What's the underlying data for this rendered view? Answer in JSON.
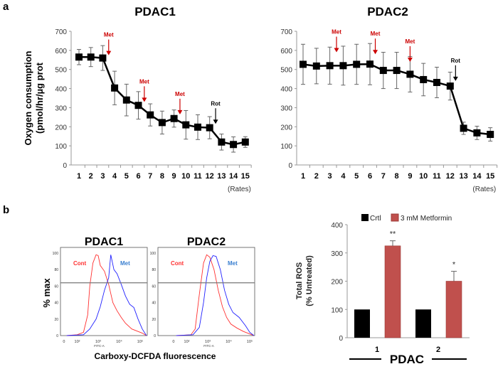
{
  "panel_labels": [
    "a",
    "b"
  ],
  "colors": {
    "line": "#000000",
    "met_arrow": "#cc0000",
    "rot_arrow": "#000000",
    "cont_hist": "#ff3030",
    "met_hist": "#2020ff",
    "met_label": "#3a7fd0",
    "crtl_bar": "#000000",
    "metformin_bar": "#c0504d"
  },
  "chart_data": [
    {
      "type": "line",
      "title": "PDAC1",
      "ylabel": "Oxygen consumption (pmol/hr/µg prot",
      "xlabel": "(Rates)",
      "ylim": [
        0,
        700
      ],
      "yticks": [
        0,
        100,
        200,
        300,
        400,
        500,
        600,
        700
      ],
      "x": [
        1,
        2,
        3,
        4,
        5,
        6,
        7,
        8,
        9,
        10,
        11,
        12,
        13,
        14,
        15
      ],
      "values": [
        565,
        565,
        560,
        403,
        340,
        312,
        262,
        222,
        243,
        210,
        198,
        195,
        120,
        107,
        120
      ],
      "errors": [
        40,
        50,
        65,
        88,
        83,
        72,
        58,
        60,
        45,
        75,
        65,
        58,
        42,
        40,
        28
      ],
      "annotations": [
        {
          "text": "Met",
          "x": 3.5,
          "y": 575,
          "color": "#cc0000"
        },
        {
          "text": "Met",
          "x": 6.5,
          "y": 330,
          "color": "#cc0000"
        },
        {
          "text": "Met",
          "x": 9.5,
          "y": 265,
          "color": "#cc0000"
        },
        {
          "text": "Rot",
          "x": 12.5,
          "y": 215,
          "color": "#000000"
        }
      ]
    },
    {
      "type": "line",
      "title": "PDAC2",
      "xlabel": "(Rates)",
      "ylim": [
        0,
        700
      ],
      "yticks": [
        0,
        100,
        200,
        300,
        400,
        500,
        600,
        700
      ],
      "x": [
        1,
        2,
        3,
        4,
        5,
        6,
        7,
        8,
        9,
        10,
        11,
        12,
        13,
        14,
        15
      ],
      "values": [
        527,
        518,
        520,
        520,
        527,
        528,
        495,
        495,
        475,
        447,
        432,
        413,
        192,
        168,
        160
      ],
      "errors": [
        105,
        93,
        97,
        102,
        105,
        108,
        95,
        95,
        93,
        85,
        80,
        73,
        32,
        35,
        35
      ],
      "annotations": [
        {
          "text": "Met",
          "x": 3.5,
          "y": 590,
          "color": "#cc0000"
        },
        {
          "text": "Met",
          "x": 6.4,
          "y": 580,
          "color": "#cc0000"
        },
        {
          "text": "Met",
          "x": 9.0,
          "y": 540,
          "color": "#cc0000"
        },
        {
          "text": "Rot",
          "x": 12.4,
          "y": 440,
          "color": "#000000"
        }
      ]
    },
    {
      "type": "line",
      "title": "PDAC1",
      "ylabel": "% max",
      "xlabel": "FITC-A",
      "xscale": "log",
      "xticks": [
        "0",
        "10²",
        "10³",
        "10⁴",
        "10⁵"
      ],
      "yticks": [
        0,
        20,
        40,
        60,
        80,
        100
      ],
      "gate_y": 64,
      "series": [
        {
          "name": "Cont",
          "color": "#ff3030",
          "x": [
            1.5,
            2.0,
            2.3,
            2.5,
            2.6,
            2.75,
            2.9,
            3.0,
            3.1,
            3.3,
            3.5,
            3.7,
            3.9,
            4.1,
            4.3,
            4.6,
            4.9,
            5.1,
            5.3
          ],
          "y": [
            0,
            1,
            4,
            25,
            60,
            88,
            98,
            97,
            85,
            78,
            62,
            40,
            30,
            22,
            15,
            8,
            5,
            3,
            0
          ]
        },
        {
          "name": "Met",
          "color": "#2020ff",
          "x": [
            1.5,
            2.3,
            2.6,
            2.9,
            3.1,
            3.3,
            3.5,
            3.6,
            3.75,
            3.9,
            4.1,
            4.3,
            4.5,
            4.7,
            4.9,
            5.1,
            5.3
          ],
          "y": [
            0,
            1,
            8,
            20,
            35,
            55,
            70,
            98,
            80,
            75,
            62,
            48,
            38,
            34,
            20,
            8,
            0
          ]
        }
      ]
    },
    {
      "type": "line",
      "title": "PDAC2",
      "xlabel": "FITC-A",
      "xscale": "log",
      "xticks": [
        "0",
        "10²",
        "10³",
        "10⁴",
        "10⁵"
      ],
      "yticks": [
        0,
        20,
        40,
        60,
        80,
        100
      ],
      "gate_y": 64,
      "series": [
        {
          "name": "Cont",
          "color": "#ff3030",
          "x": [
            1.5,
            2.2,
            2.4,
            2.6,
            2.8,
            2.95,
            3.1,
            3.3,
            3.5,
            3.7,
            3.9,
            4.1,
            4.4,
            4.7,
            5.0,
            5.2
          ],
          "y": [
            0,
            1,
            8,
            50,
            88,
            98,
            95,
            80,
            55,
            35,
            22,
            14,
            9,
            5,
            2,
            0
          ]
        },
        {
          "name": "Met",
          "color": "#2020ff",
          "x": [
            1.5,
            2.3,
            2.6,
            2.8,
            2.95,
            3.1,
            3.25,
            3.4,
            3.6,
            3.8,
            4.0,
            4.2,
            4.5,
            4.8,
            5.0,
            5.2
          ],
          "y": [
            0,
            1,
            10,
            40,
            70,
            90,
            97,
            96,
            80,
            55,
            38,
            28,
            22,
            12,
            4,
            0
          ]
        }
      ]
    },
    {
      "type": "bar",
      "ylabel_lines": [
        "Total ROS",
        "(% Untreated)"
      ],
      "xlabel": "PDAC",
      "categories": [
        "1",
        "2"
      ],
      "ylim": [
        0,
        400
      ],
      "yticks": [
        0,
        100,
        200,
        300,
        400
      ],
      "legend_position": "top",
      "series": [
        {
          "name": "Crtl",
          "color": "#000000",
          "values": [
            100,
            100
          ],
          "errors": [
            0,
            0
          ]
        },
        {
          "name": "3 mM Metformin",
          "color": "#c0504d",
          "values": [
            325,
            200
          ],
          "errors": [
            18,
            35
          ]
        }
      ],
      "significance": [
        "**",
        "*"
      ]
    }
  ],
  "flow_shared_xlabel": "Carboxy-DCFDA fluorescence"
}
